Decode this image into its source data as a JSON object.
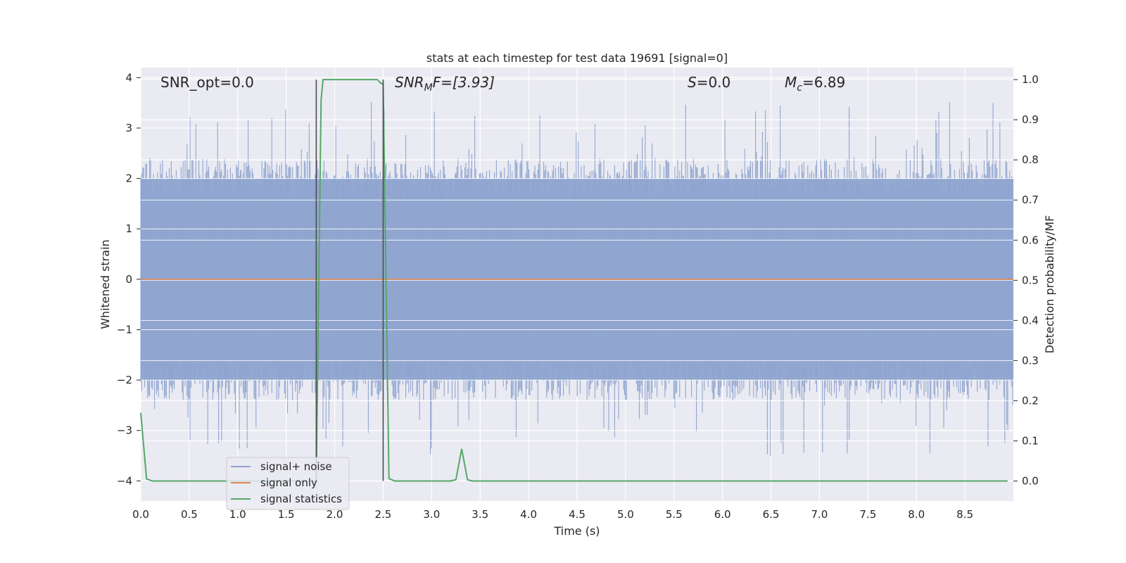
{
  "chart_data": {
    "type": "line",
    "title": "stats at each timestep for test data 19691 [signal=0]",
    "xlabel": "Time (s)",
    "ylabel": "Whitened strain",
    "ylabel_right": "Detection probability/MF",
    "xlim": [
      0.0,
      9.0
    ],
    "ylim": [
      -4.4,
      4.2
    ],
    "ylim_right": [
      -0.05,
      1.03
    ],
    "x_ticks": [
      0.0,
      0.5,
      1.0,
      1.5,
      2.0,
      2.5,
      3.0,
      3.5,
      4.0,
      4.5,
      5.0,
      5.5,
      6.0,
      6.5,
      7.0,
      7.5,
      8.0,
      8.5
    ],
    "x_tick_labels": [
      "0.0",
      "0.5",
      "1.0",
      "1.5",
      "2.0",
      "2.5",
      "3.0",
      "3.5",
      "4.0",
      "4.5",
      "5.0",
      "5.5",
      "6.0",
      "6.5",
      "7.0",
      "7.5",
      "8.0",
      "8.5"
    ],
    "y_ticks": [
      4,
      3,
      2,
      1,
      0,
      -1,
      -2,
      -3,
      -4
    ],
    "y_tick_labels": [
      "4",
      "3",
      "2",
      "1",
      "0",
      "−1",
      "−2",
      "−3",
      "−4"
    ],
    "y_right_ticks": [
      1.0,
      0.9,
      0.8,
      0.7,
      0.6,
      0.5,
      0.4,
      0.3,
      0.2,
      0.1,
      0.0
    ],
    "y_right_tick_labels": [
      "1.0",
      "0.9",
      "0.8",
      "0.7",
      "0.6",
      "0.5",
      "0.4",
      "0.3",
      "0.2",
      "0.1",
      "0.0"
    ],
    "annotations": {
      "snr_opt": "SNR_opt=0.0",
      "snr_mf_base": "SNR",
      "snr_mf_sub": "M",
      "snr_mf_rest": "F=[3.93]",
      "s_stat_var": "S",
      "s_stat_rest": "=0.0",
      "mc_base": "M",
      "mc_sub": "c",
      "mc_rest": "=6.89"
    },
    "markers_x": [
      1.81,
      2.5
    ],
    "series": [
      {
        "name": "signal+ noise",
        "color": "#8fa5cf",
        "axis": "left",
        "description_values": "whitened noise, approx. uniform band between -2.0 and 2.0 with spikes to about ±3.5",
        "band": [
          -2.0,
          2.0
        ]
      },
      {
        "name": "signal only",
        "color": "#dd8452",
        "axis": "left",
        "x": [
          0.0,
          9.0
        ],
        "y": [
          0.0,
          0.0
        ]
      },
      {
        "name": "signal statistics",
        "color": "#55a868",
        "axis": "right",
        "x": [
          0.0,
          0.06,
          0.12,
          1.81,
          1.86,
          1.88,
          2.44,
          2.48,
          2.5,
          2.56,
          2.62,
          3.19,
          3.25,
          3.31,
          3.37,
          3.42,
          8.94
        ],
        "y": [
          0.17,
          0.005,
          0.0,
          0.0,
          0.95,
          1.0,
          1.0,
          0.99,
          0.99,
          0.006,
          0.0,
          0.0,
          0.003,
          0.08,
          0.003,
          0.0,
          0.0
        ]
      }
    ],
    "grid": true,
    "legend_position": "lower-left"
  }
}
